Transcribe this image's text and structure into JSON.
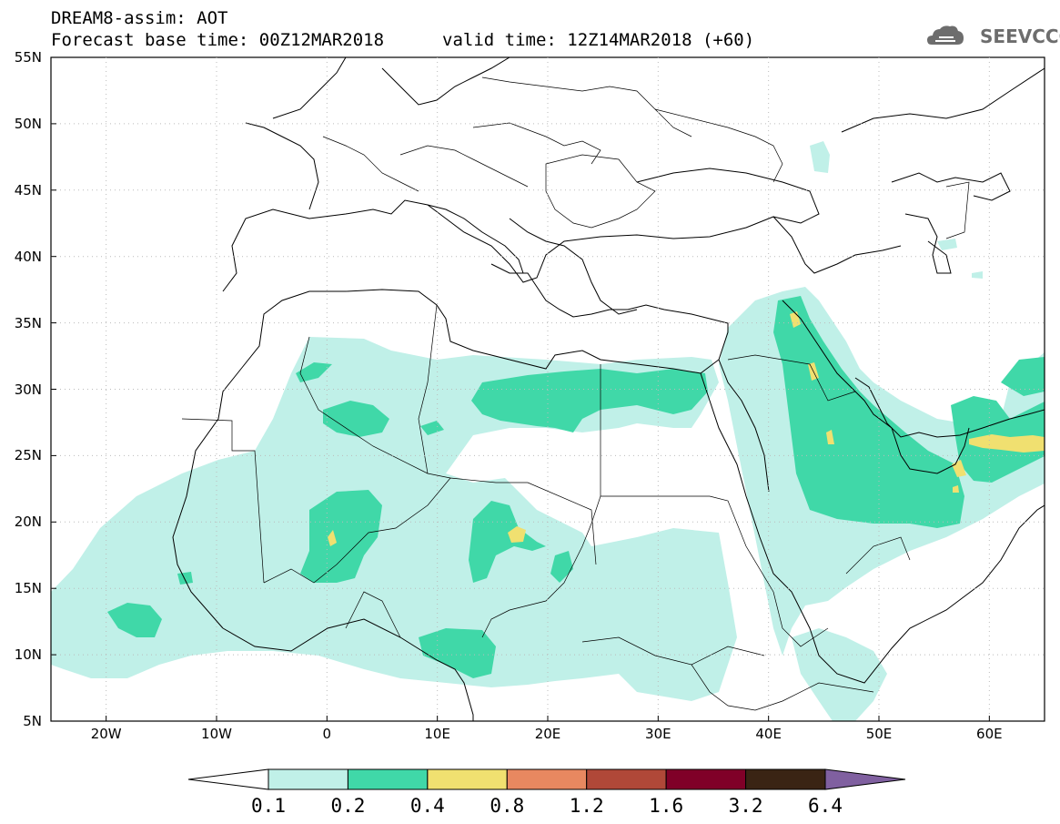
{
  "header": {
    "title_line1": "DREAM8-assim: AOT",
    "title_line2": "Forecast base time: 00Z12MAR2018",
    "valid_time": "valid time: 12Z14MAR2018 (+60)",
    "logo_text": "SEEVCCC",
    "logo_icon": "cloud-icon"
  },
  "axes": {
    "lat_labels": [
      "55N",
      "50N",
      "45N",
      "40N",
      "35N",
      "30N",
      "25N",
      "20N",
      "15N",
      "10N",
      "5N"
    ],
    "lon_labels": [
      "20W",
      "10W",
      "0",
      "10E",
      "20E",
      "30E",
      "40E",
      "50E",
      "60E"
    ]
  },
  "colorbar": {
    "labels": [
      "0.1",
      "0.2",
      "0.4",
      "0.8",
      "1.2",
      "1.6",
      "3.2",
      "6.4"
    ],
    "colors": [
      "#c0f0e8",
      "#40d8a8",
      "#f0e070",
      "#e88860",
      "#b04838",
      "#800028",
      "#3a2414",
      "#8060a0"
    ],
    "under_color": "#ffffff"
  },
  "map": {
    "variable": "AOT",
    "extent": {
      "lon_min": -25,
      "lon_max": 65,
      "lat_min": 5,
      "lat_max": 55
    },
    "colors": {
      "ocean": "#ffffff",
      "border": "#000000"
    }
  }
}
